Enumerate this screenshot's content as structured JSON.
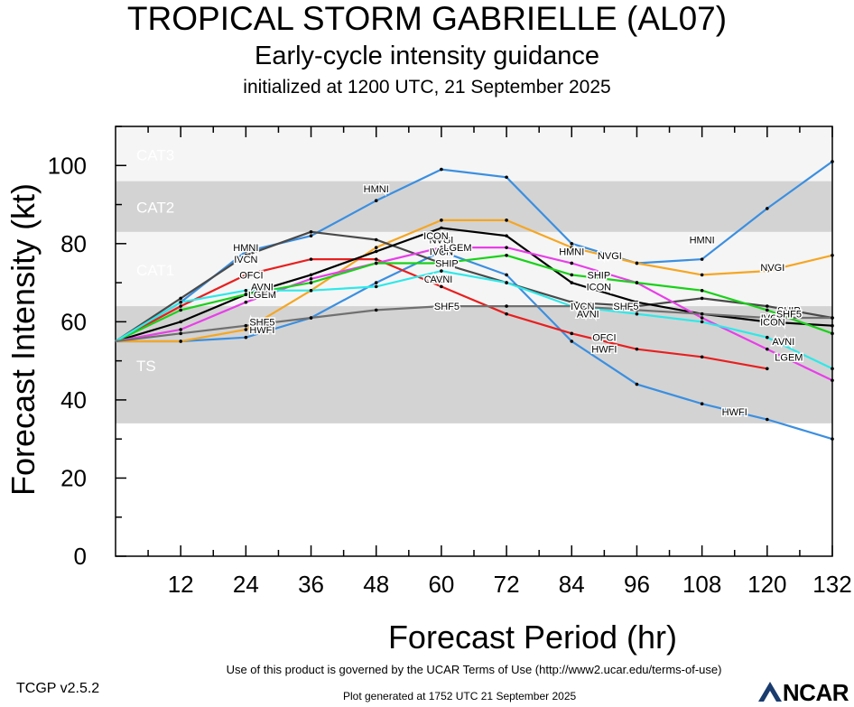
{
  "header": {
    "title": "TROPICAL STORM GABRIELLE (AL07)",
    "subtitle": "Early-cycle intensity guidance",
    "init_line": "initialized at 1200 UTC, 21 September 2025"
  },
  "footer": {
    "version": "TCGP v2.5.2",
    "terms": "Use of this product is governed by the UCAR Terms of Use (http://www2.ucar.edu/terms-of-use)",
    "generated": "Plot generated at 1752 UTC   21 September 2025",
    "logo_text": "NCAR"
  },
  "chart_data": {
    "type": "line",
    "xlabel": "Forecast Period (hr)",
    "ylabel": "Forecast Intensity (kt)",
    "xlim": [
      0,
      132
    ],
    "ylim": [
      0,
      110
    ],
    "xticks": [
      12,
      24,
      36,
      48,
      60,
      72,
      84,
      96,
      108,
      120,
      132
    ],
    "yticks": [
      0,
      20,
      40,
      60,
      80,
      100
    ],
    "category_bands": [
      {
        "name": "TS",
        "from": 34,
        "to": 64,
        "color": "#d3d3d3"
      },
      {
        "name": "CAT1",
        "from": 64,
        "to": 83,
        "color": "#f5f5f5"
      },
      {
        "name": "CAT2",
        "from": 83,
        "to": 96,
        "color": "#d3d3d3"
      },
      {
        "name": "CAT3",
        "from": 96,
        "to": 113,
        "color": "#f5f5f5"
      }
    ],
    "series": [
      {
        "name": "HMNI",
        "color": "#3b8fe0",
        "points": [
          [
            0,
            55
          ],
          [
            12,
            65
          ],
          [
            24,
            78
          ],
          [
            36,
            82
          ],
          [
            48,
            91
          ],
          [
            60,
            99
          ],
          [
            72,
            97
          ],
          [
            84,
            80
          ],
          [
            96,
            75
          ],
          [
            108,
            76
          ],
          [
            120,
            89
          ],
          [
            132,
            101
          ]
        ],
        "labels": [
          [
            24,
            79
          ],
          [
            48,
            94
          ],
          [
            84,
            78
          ],
          [
            108,
            81
          ]
        ]
      },
      {
        "name": "HWFI",
        "color": "#3b8fe0",
        "points": [
          [
            0,
            55
          ],
          [
            12,
            55
          ],
          [
            24,
            56
          ],
          [
            36,
            61
          ],
          [
            48,
            70
          ],
          [
            60,
            78
          ],
          [
            72,
            72
          ],
          [
            84,
            55
          ],
          [
            96,
            44
          ],
          [
            108,
            39
          ],
          [
            120,
            35
          ],
          [
            132,
            30
          ]
        ],
        "labels": [
          [
            27,
            58
          ],
          [
            90,
            53
          ],
          [
            114,
            37
          ]
        ]
      },
      {
        "name": "NVGI",
        "color": "#f5a623",
        "points": [
          [
            0,
            55
          ],
          [
            12,
            55
          ],
          [
            24,
            58
          ],
          [
            36,
            68
          ],
          [
            48,
            79
          ],
          [
            60,
            86
          ],
          [
            72,
            86
          ],
          [
            84,
            79
          ],
          [
            96,
            75
          ],
          [
            108,
            72
          ],
          [
            120,
            73
          ],
          [
            132,
            77
          ]
        ],
        "labels": [
          [
            27,
            60
          ],
          [
            60,
            81
          ],
          [
            91,
            77
          ],
          [
            121,
            74
          ]
        ]
      },
      {
        "name": "IVCN",
        "color": "#4a4a4a",
        "points": [
          [
            0,
            55
          ],
          [
            12,
            66
          ],
          [
            24,
            77
          ],
          [
            36,
            83
          ],
          [
            48,
            81
          ],
          [
            60,
            75
          ],
          [
            72,
            70
          ],
          [
            84,
            65
          ],
          [
            96,
            64
          ],
          [
            108,
            66
          ],
          [
            120,
            64
          ],
          [
            132,
            61
          ]
        ],
        "labels": [
          [
            24,
            76
          ],
          [
            60,
            78
          ],
          [
            86,
            64
          ],
          [
            121,
            61
          ]
        ]
      },
      {
        "name": "OFCI",
        "color": "#e81f1f",
        "points": [
          [
            0,
            55
          ],
          [
            12,
            64
          ],
          [
            24,
            72
          ],
          [
            36,
            76
          ],
          [
            48,
            76
          ],
          [
            60,
            69
          ],
          [
            72,
            62
          ],
          [
            84,
            57
          ],
          [
            96,
            53
          ],
          [
            108,
            51
          ],
          [
            120,
            48
          ]
        ],
        "labels": [
          [
            25,
            72
          ],
          [
            59,
            71
          ],
          [
            90,
            56
          ]
        ]
      },
      {
        "name": "ICON",
        "color": "#000000",
        "points": [
          [
            0,
            55
          ],
          [
            12,
            60
          ],
          [
            24,
            67
          ],
          [
            36,
            72
          ],
          [
            48,
            78
          ],
          [
            60,
            84
          ],
          [
            72,
            82
          ],
          [
            84,
            70
          ],
          [
            96,
            65
          ],
          [
            108,
            62
          ],
          [
            120,
            60
          ],
          [
            132,
            59
          ]
        ],
        "labels": [
          [
            59,
            82
          ],
          [
            89,
            69
          ],
          [
            121,
            60
          ]
        ]
      },
      {
        "name": "LGEM",
        "color": "#e83fe8",
        "points": [
          [
            0,
            55
          ],
          [
            12,
            58
          ],
          [
            24,
            65
          ],
          [
            36,
            71
          ],
          [
            48,
            75
          ],
          [
            60,
            79
          ],
          [
            72,
            79
          ],
          [
            84,
            75
          ],
          [
            96,
            70
          ],
          [
            108,
            61
          ],
          [
            120,
            53
          ],
          [
            132,
            45
          ]
        ],
        "labels": [
          [
            27,
            67
          ],
          [
            63,
            79
          ],
          [
            124,
            51
          ]
        ]
      },
      {
        "name": "SHIP",
        "color": "#19d119",
        "points": [
          [
            0,
            55
          ],
          [
            12,
            63
          ],
          [
            24,
            67
          ],
          [
            36,
            70
          ],
          [
            48,
            75
          ],
          [
            60,
            75
          ],
          [
            72,
            77
          ],
          [
            84,
            72
          ],
          [
            96,
            70
          ],
          [
            108,
            68
          ],
          [
            120,
            63
          ],
          [
            132,
            57
          ]
        ],
        "labels": [
          [
            61,
            75
          ],
          [
            89,
            72
          ],
          [
            124,
            63
          ]
        ]
      },
      {
        "name": "AVNI",
        "color": "#2fe8e8",
        "points": [
          [
            0,
            55
          ],
          [
            12,
            65
          ],
          [
            24,
            68
          ],
          [
            36,
            68
          ],
          [
            48,
            69
          ],
          [
            60,
            73
          ],
          [
            72,
            70
          ],
          [
            84,
            64
          ],
          [
            96,
            62
          ],
          [
            108,
            60
          ],
          [
            120,
            56
          ],
          [
            132,
            48
          ]
        ],
        "labels": [
          [
            27,
            69
          ],
          [
            60,
            71
          ],
          [
            87,
            62
          ],
          [
            123,
            55
          ]
        ]
      },
      {
        "name": "SHF5",
        "color": "#707070",
        "points": [
          [
            0,
            55
          ],
          [
            12,
            57
          ],
          [
            24,
            59
          ],
          [
            36,
            61
          ],
          [
            48,
            63
          ],
          [
            60,
            64
          ],
          [
            72,
            64
          ],
          [
            84,
            64
          ],
          [
            96,
            63
          ],
          [
            108,
            62
          ],
          [
            120,
            61
          ],
          [
            132,
            61
          ]
        ],
        "labels": [
          [
            27,
            60
          ],
          [
            61,
            64
          ],
          [
            94,
            64
          ],
          [
            124,
            62
          ]
        ]
      }
    ]
  }
}
